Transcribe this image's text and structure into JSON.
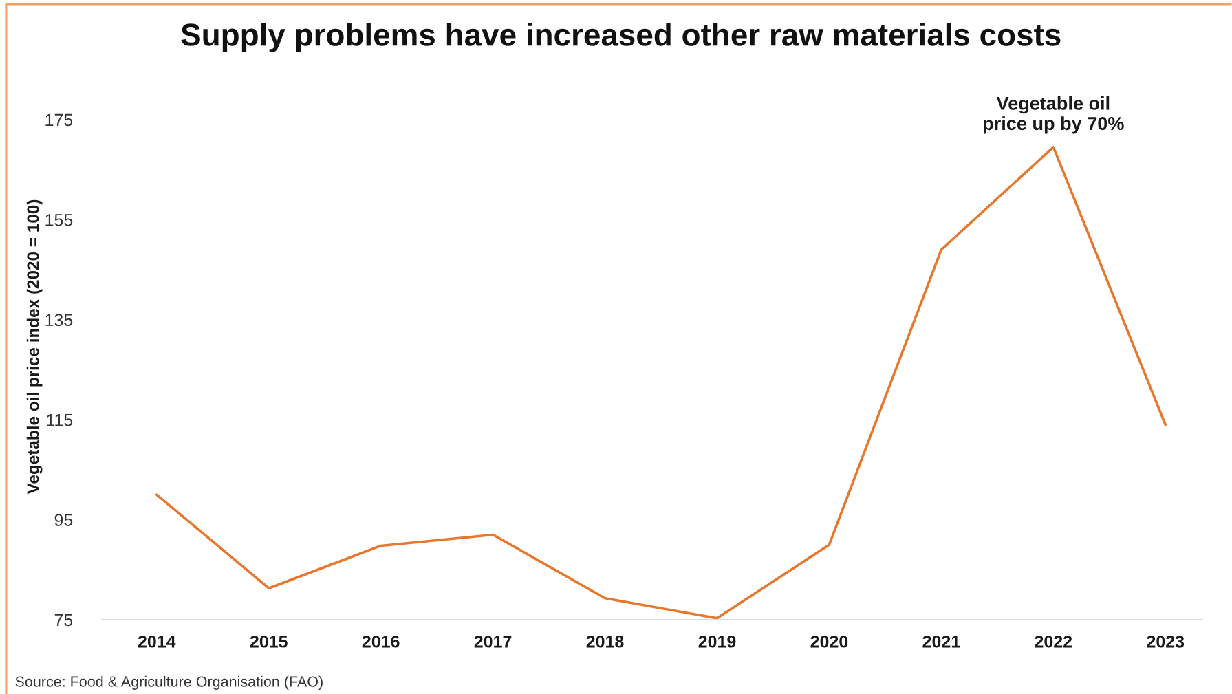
{
  "chart_data": {
    "type": "line",
    "title": "Supply problems have increased other raw materials costs",
    "ylabel": "Vegetable oil price index (2020 = 100)",
    "categories": [
      "2014",
      "2015",
      "2016",
      "2017",
      "2018",
      "2019",
      "2020",
      "2021",
      "2022",
      "2023"
    ],
    "values": [
      100,
      81.3,
      89.8,
      92,
      79.3,
      75.3,
      90,
      149,
      169.5,
      114
    ],
    "color": "#e8772e",
    "ylim": [
      75,
      175
    ],
    "yticks": [
      75,
      95,
      115,
      135,
      155,
      175
    ],
    "annotations": [
      {
        "text": "Vegetable oil\nprice up by 70%",
        "x": "2022",
        "y": 169.5
      },
      "Source: Food & Agriculture Organisation (FAO)"
    ]
  }
}
